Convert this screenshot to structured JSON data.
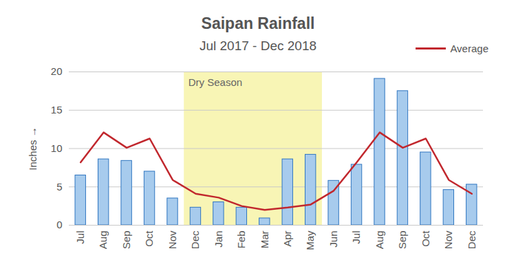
{
  "chart_data": {
    "type": "bar",
    "title": "Saipan Rainfall",
    "subtitle": "Jul 2017 - Dec 2018",
    "y_label": "Inches",
    "categories": [
      "Jul",
      "Aug",
      "Sep",
      "Oct",
      "Nov",
      "Dec",
      "Jan",
      "Feb",
      "Mar",
      "Apr",
      "May",
      "Jun",
      "Jul",
      "Aug",
      "Sep",
      "Oct",
      "Nov",
      "Dec"
    ],
    "series": [
      {
        "type": "bar",
        "color": "#a7cbed",
        "values": [
          6.5,
          8.6,
          8.4,
          7.0,
          3.5,
          2.3,
          3.0,
          2.3,
          0.9,
          8.6,
          9.2,
          5.8,
          7.9,
          19.1,
          17.5,
          9.5,
          4.6,
          5.3
        ]
      },
      {
        "name": "Average",
        "type": "line",
        "color": "#c1272d",
        "values": [
          8.2,
          12.1,
          10.1,
          11.3,
          5.9,
          4.1,
          3.6,
          2.5,
          2.0,
          2.3,
          2.7,
          4.5,
          8.2,
          12.1,
          10.1,
          11.3,
          5.9,
          4.1
        ]
      }
    ],
    "annotations": [
      {
        "text": "Dry Season",
        "x_start": 5,
        "x_end": 10,
        "color": "#f8f5b5"
      }
    ],
    "ylim": [
      0,
      20
    ],
    "yticks": [
      0,
      5,
      10,
      15,
      20
    ],
    "grid": true,
    "legend": "top-right"
  }
}
